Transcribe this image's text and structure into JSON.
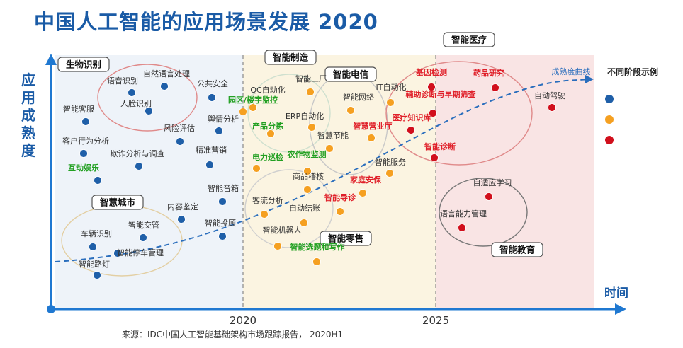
{
  "title": "中国人工智能的应用场景发展 2020",
  "source": "来源：IDC中国人工智能基础架构市场跟踪报告， 2020H1",
  "chart_data": {
    "type": "scatter",
    "title": "中国人工智能的应用场景发展 2020",
    "xlabel": "时间",
    "ylabel": "应用成熟度",
    "x_ticks": [
      "2020",
      "2025"
    ],
    "maturity_curve_label": "成熟度曲线",
    "legend": {
      "title": "不同阶段示例",
      "colors": [
        "#1f5fa8",
        "#f5a021",
        "#d10f1c"
      ]
    },
    "colors": {
      "blue": "#1f5fa8",
      "orange": "#f5a021",
      "red": "#d10f1c",
      "green_label": "#22a022",
      "red_label": "#e0202a"
    },
    "clusters": [
      {
        "name": "生物识别"
      },
      {
        "name": "智能制造"
      },
      {
        "name": "智能电信"
      },
      {
        "name": "智能医疗"
      },
      {
        "name": "智慧城市"
      },
      {
        "name": "智能零售"
      },
      {
        "name": "智能教育"
      }
    ],
    "points": [
      {
        "label": "语音识别",
        "stage": "blue"
      },
      {
        "label": "自然语言处理",
        "stage": "blue"
      },
      {
        "label": "人脸识别",
        "stage": "blue"
      },
      {
        "label": "公共安全",
        "stage": "blue"
      },
      {
        "label": "智能客服",
        "stage": "blue"
      },
      {
        "label": "舆情分析",
        "stage": "blue"
      },
      {
        "label": "风险评估",
        "stage": "blue"
      },
      {
        "label": "客户行为分析",
        "stage": "blue"
      },
      {
        "label": "欺诈分析与调查",
        "stage": "blue"
      },
      {
        "label": "精准营销",
        "stage": "blue"
      },
      {
        "label": "互动娱乐",
        "stage": "blue",
        "color": "green"
      },
      {
        "label": "智能音箱",
        "stage": "blue"
      },
      {
        "label": "内容鉴定",
        "stage": "blue"
      },
      {
        "label": "智能投顾",
        "stage": "blue"
      },
      {
        "label": "车辆识别",
        "stage": "blue"
      },
      {
        "label": "智能交管",
        "stage": "blue"
      },
      {
        "label": "智能停车管理",
        "stage": "blue"
      },
      {
        "label": "智能路灯",
        "stage": "blue"
      },
      {
        "label": "QC自动化",
        "stage": "orange"
      },
      {
        "label": "智能工厂",
        "stage": "orange"
      },
      {
        "label": "园区/楼宇监控",
        "stage": "orange",
        "color": "green"
      },
      {
        "label": "产品分拣",
        "stage": "orange",
        "color": "green"
      },
      {
        "label": "ERP自动化",
        "stage": "orange"
      },
      {
        "label": "智能网络",
        "stage": "orange"
      },
      {
        "label": "智慧节能",
        "stage": "orange"
      },
      {
        "label": "IT自动化",
        "stage": "orange"
      },
      {
        "label": "智慧营业厅",
        "stage": "orange",
        "color": "red"
      },
      {
        "label": "电力巡检",
        "stage": "orange",
        "color": "green"
      },
      {
        "label": "农作物监测",
        "stage": "orange",
        "color": "green"
      },
      {
        "label": "商品稽核",
        "stage": "orange"
      },
      {
        "label": "智能服务",
        "stage": "orange"
      },
      {
        "label": "家庭安保",
        "stage": "orange",
        "color": "red"
      },
      {
        "label": "客流分析",
        "stage": "orange"
      },
      {
        "label": "智能导诊",
        "stage": "orange",
        "color": "red"
      },
      {
        "label": "自动结账",
        "stage": "orange"
      },
      {
        "label": "智能机器人",
        "stage": "orange"
      },
      {
        "label": "智能选题和写作",
        "stage": "orange",
        "color": "green"
      },
      {
        "label": "基因检测",
        "stage": "red",
        "color": "red"
      },
      {
        "label": "辅助诊断与早期筛查",
        "stage": "red",
        "color": "red"
      },
      {
        "label": "药品研究",
        "stage": "red",
        "color": "red"
      },
      {
        "label": "医疗知识库",
        "stage": "red",
        "color": "red"
      },
      {
        "label": "智能诊断",
        "stage": "red",
        "color": "red"
      },
      {
        "label": "自动驾驶",
        "stage": "red"
      },
      {
        "label": "自适应学习",
        "stage": "red"
      },
      {
        "label": "语言能力管理",
        "stage": "red"
      }
    ]
  }
}
